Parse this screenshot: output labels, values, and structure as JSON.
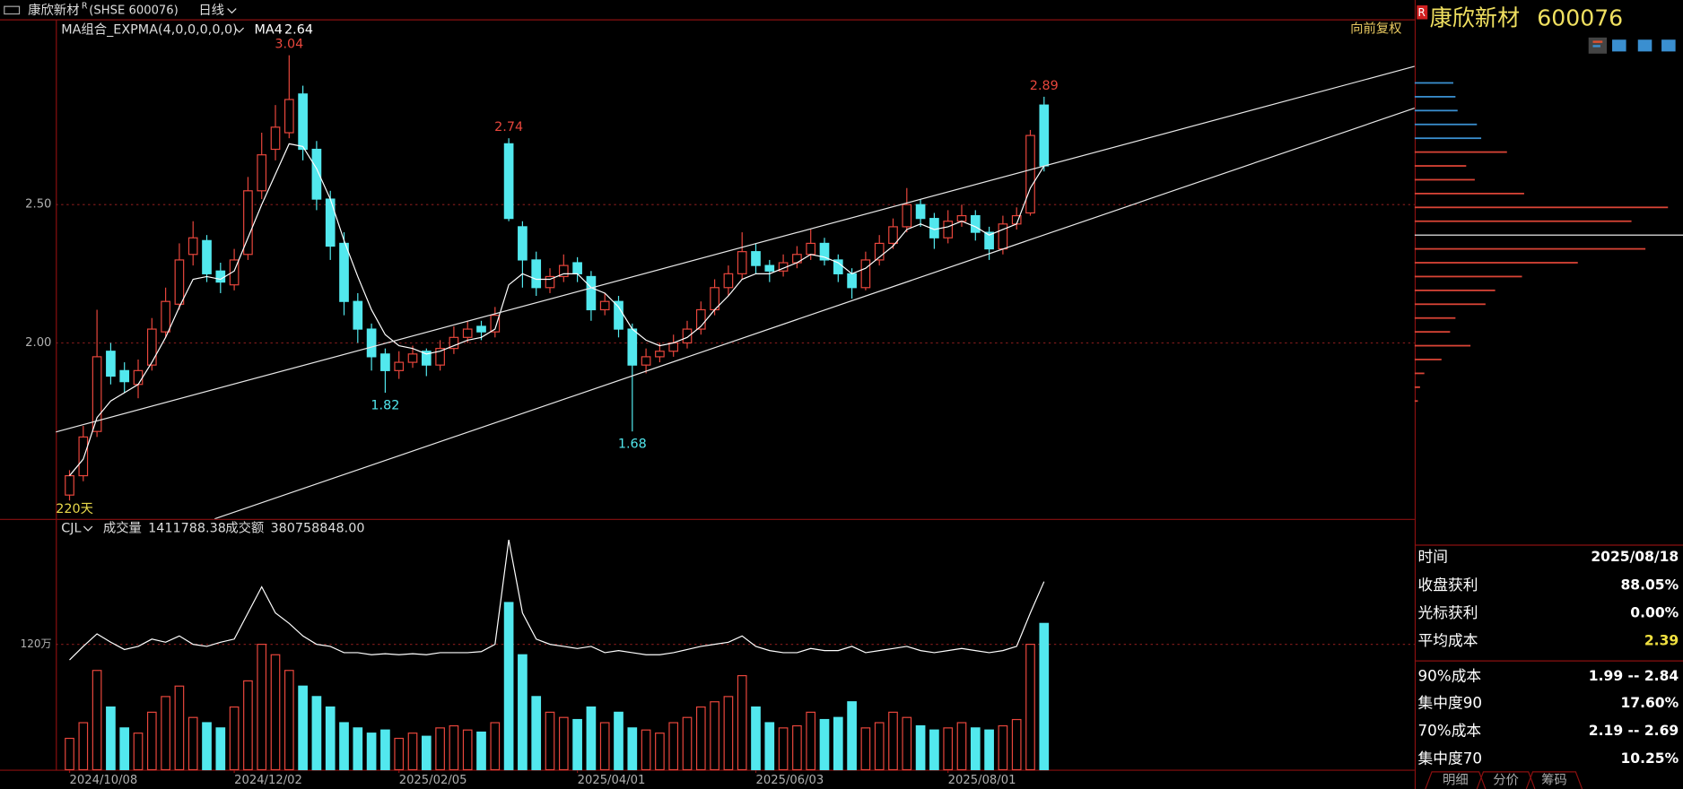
{
  "header": {
    "name": "康欣新材",
    "flag": "R",
    "code": "(SHSE 600076)",
    "period": "日线"
  },
  "chart_data": {
    "type": "candlestick",
    "indicator": "MA组合_EXPMA(4,0,0,0,0,0)",
    "adjust": "向前复权",
    "period_label": "220天",
    "xlim": [
      -1,
      98
    ],
    "xticks": [
      {
        "value": 0,
        "label": "2024/10/08"
      },
      {
        "value": 12,
        "label": "2024/12/02"
      },
      {
        "value": 24,
        "label": "2025/02/05"
      },
      {
        "value": 37,
        "label": "2025/04/01"
      },
      {
        "value": 50,
        "label": "2025/06/03"
      },
      {
        "value": 64,
        "label": "2025/08/01"
      }
    ],
    "ylim": [
      1.364,
      3.17
    ],
    "yticks": [
      {
        "value": 2,
        "label": "2.00"
      },
      {
        "value": 2.5,
        "label": "2.50"
      }
    ],
    "grid": true,
    "colors": {
      "up": "#e8463c",
      "down": "#52e8ee"
    },
    "open": [
      1.45,
      1.52,
      1.68,
      1.97,
      1.9,
      1.85,
      1.92,
      2.04,
      2.14,
      2.32,
      2.37,
      2.26,
      2.21,
      2.32,
      2.55,
      2.7,
      2.76,
      2.9,
      2.7,
      2.52,
      2.36,
      2.15,
      2.05,
      1.96,
      1.9,
      1.93,
      1.97,
      1.92,
      1.98,
      2.02,
      2.06,
      2.04,
      2.72,
      2.42,
      2.3,
      2.2,
      2.24,
      2.29,
      2.24,
      2.12,
      2.15,
      2.05,
      1.92,
      1.95,
      1.97,
      2.0,
      2.05,
      2.12,
      2.2,
      2.25,
      2.33,
      2.28,
      2.26,
      2.29,
      2.32,
      2.36,
      2.3,
      2.25,
      2.2,
      2.3,
      2.36,
      2.42,
      2.5,
      2.45,
      2.38,
      2.44,
      2.46,
      2.4,
      2.34,
      2.43,
      2.47,
      2.86
    ],
    "high": [
      1.54,
      1.7,
      2.12,
      2.0,
      1.93,
      1.94,
      2.09,
      2.2,
      2.36,
      2.44,
      2.39,
      2.29,
      2.34,
      2.6,
      2.76,
      2.86,
      3.04,
      2.93,
      2.73,
      2.55,
      2.4,
      2.18,
      2.07,
      1.98,
      1.97,
      1.99,
      1.98,
      2.01,
      2.06,
      2.08,
      2.08,
      2.13,
      2.74,
      2.44,
      2.33,
      2.27,
      2.32,
      2.31,
      2.26,
      2.18,
      2.17,
      2.07,
      1.98,
      2.0,
      2.03,
      2.08,
      2.15,
      2.23,
      2.28,
      2.4,
      2.36,
      2.3,
      2.32,
      2.35,
      2.41,
      2.38,
      2.32,
      2.27,
      2.33,
      2.39,
      2.45,
      2.56,
      2.52,
      2.47,
      2.48,
      2.5,
      2.48,
      2.42,
      2.46,
      2.49,
      2.77,
      2.89
    ],
    "low": [
      1.43,
      1.5,
      1.66,
      1.85,
      1.82,
      1.8,
      1.9,
      2.02,
      2.12,
      2.28,
      2.22,
      2.18,
      2.19,
      2.3,
      2.52,
      2.66,
      2.74,
      2.66,
      2.48,
      2.3,
      2.1,
      2.0,
      1.9,
      1.82,
      1.87,
      1.91,
      1.88,
      1.9,
      1.96,
      2.0,
      2.01,
      2.02,
      2.44,
      2.2,
      2.17,
      2.18,
      2.22,
      2.22,
      2.08,
      2.1,
      2.02,
      1.68,
      1.89,
      1.93,
      1.95,
      1.98,
      2.03,
      2.1,
      2.17,
      2.23,
      2.25,
      2.22,
      2.24,
      2.27,
      2.3,
      2.28,
      2.22,
      2.16,
      2.19,
      2.28,
      2.34,
      2.4,
      2.42,
      2.34,
      2.36,
      2.42,
      2.37,
      2.3,
      2.32,
      2.41,
      2.46,
      2.62
    ],
    "close": [
      1.52,
      1.66,
      1.95,
      1.88,
      1.86,
      1.9,
      2.05,
      2.15,
      2.3,
      2.38,
      2.25,
      2.22,
      2.3,
      2.55,
      2.68,
      2.78,
      2.88,
      2.7,
      2.52,
      2.35,
      2.15,
      2.05,
      1.95,
      1.9,
      1.93,
      1.96,
      1.92,
      1.98,
      2.02,
      2.05,
      2.04,
      2.1,
      2.45,
      2.3,
      2.2,
      2.24,
      2.28,
      2.25,
      2.12,
      2.15,
      2.05,
      1.92,
      1.95,
      1.97,
      2.0,
      2.05,
      2.12,
      2.2,
      2.25,
      2.33,
      2.28,
      2.26,
      2.29,
      2.32,
      2.36,
      2.3,
      2.25,
      2.2,
      2.3,
      2.36,
      2.42,
      2.5,
      2.45,
      2.38,
      2.44,
      2.46,
      2.4,
      2.34,
      2.43,
      2.46,
      2.75,
      2.64
    ],
    "ma": {
      "name": "MA4",
      "color": "#ffffff",
      "values": [
        1.52,
        1.58,
        1.73,
        1.79,
        1.82,
        1.85,
        1.93,
        2.02,
        2.13,
        2.23,
        2.24,
        2.23,
        2.26,
        2.38,
        2.5,
        2.61,
        2.72,
        2.71,
        2.63,
        2.52,
        2.37,
        2.24,
        2.12,
        2.03,
        1.99,
        1.98,
        1.96,
        1.97,
        1.99,
        2.01,
        2.02,
        2.05,
        2.21,
        2.25,
        2.23,
        2.23,
        2.25,
        2.25,
        2.2,
        2.18,
        2.13,
        2.05,
        2.01,
        1.99,
        2.0,
        2.02,
        2.06,
        2.12,
        2.17,
        2.23,
        2.25,
        2.25,
        2.27,
        2.29,
        2.32,
        2.31,
        2.29,
        2.25,
        2.27,
        2.31,
        2.35,
        2.41,
        2.43,
        2.41,
        2.42,
        2.44,
        2.42,
        2.39,
        2.41,
        2.43,
        2.56,
        2.64
      ]
    },
    "annotations": [
      {
        "x": 16,
        "y": 3.04,
        "side": "high"
      },
      {
        "x": 32,
        "y": 2.74,
        "side": "high"
      },
      {
        "x": 71,
        "y": 2.89,
        "side": "high"
      },
      {
        "x": 23,
        "y": 1.82,
        "side": "low"
      },
      {
        "x": 41,
        "y": 1.68,
        "side": "low"
      }
    ],
    "trendlines": [
      {
        "x": [
          -1,
          98
        ],
        "y": [
          1.678,
          3.0
        ]
      },
      {
        "x": [
          10.57,
          98
        ],
        "y": [
          1.364,
          2.849
        ]
      }
    ],
    "volume": {
      "label": "CJL",
      "volume_label": "成交量",
      "volume_value": "1411788.38",
      "amount_label": "成交额",
      "amount_value": "380758848.00",
      "ylim": [
        0,
        238
      ],
      "yticks": [
        {
          "value": 120,
          "label": "120万"
        }
      ],
      "values": [
        30,
        45,
        95,
        60,
        40,
        35,
        55,
        70,
        80,
        50,
        45,
        40,
        60,
        85,
        120,
        110,
        95,
        80,
        70,
        60,
        45,
        40,
        35,
        38,
        30,
        35,
        32,
        40,
        42,
        38,
        36,
        45,
        160,
        110,
        70,
        55,
        50,
        48,
        60,
        45,
        55,
        40,
        38,
        35,
        45,
        50,
        60,
        65,
        70,
        90,
        60,
        45,
        40,
        42,
        55,
        48,
        50,
        65,
        40,
        45,
        55,
        50,
        42,
        38,
        40,
        45,
        40,
        38,
        42,
        48,
        120,
        140
      ],
      "line": [
        105,
        118,
        130,
        122,
        115,
        118,
        125,
        122,
        128,
        120,
        118,
        122,
        125,
        150,
        175,
        150,
        140,
        128,
        120,
        118,
        112,
        112,
        110,
        111,
        110,
        111,
        110,
        112,
        112,
        112,
        113,
        120,
        220,
        150,
        125,
        120,
        118,
        116,
        118,
        112,
        114,
        112,
        110,
        110,
        112,
        115,
        118,
        120,
        122,
        128,
        118,
        114,
        112,
        112,
        116,
        114,
        114,
        118,
        112,
        114,
        116,
        118,
        114,
        112,
        114,
        116,
        114,
        112,
        114,
        118,
        150,
        180
      ]
    },
    "chip_distribution": {
      "xlim": [
        0,
        250
      ],
      "average_cost": 2.39,
      "prices": [
        2.94,
        2.89,
        2.84,
        2.79,
        2.74,
        2.69,
        2.64,
        2.59,
        2.54,
        2.49,
        2.44,
        2.34,
        2.29,
        2.24,
        2.19,
        2.14,
        2.09,
        2.04,
        1.99,
        1.94,
        1.89,
        1.84,
        1.79
      ],
      "amounts": [
        36,
        38,
        40,
        58,
        62,
        86,
        48,
        56,
        102,
        236,
        202,
        215,
        152,
        100,
        75,
        66,
        38,
        33,
        52,
        25,
        9,
        5,
        3
      ],
      "colors": [
        "#3a8fd0",
        "#3a8fd0",
        "#3a8fd0",
        "#3a8fd0",
        "#3a8fd0",
        "#d94436",
        "#d94436",
        "#d94436",
        "#d94436",
        "#d94436",
        "#d94436",
        "#d94436",
        "#d94436",
        "#d94436",
        "#d94436",
        "#d94436",
        "#d94436",
        "#d94436",
        "#d94436",
        "#d94436",
        "#d94436",
        "#d94436",
        "#d94436"
      ]
    }
  },
  "side_panel": {
    "flag": "R",
    "name": "康欣新材",
    "code": "600076",
    "rows": [
      [
        "时间",
        "2025/08/18"
      ],
      [
        "收盘获利",
        "88.05%"
      ],
      [
        "光标获利",
        "0.00%"
      ],
      [
        "平均成本",
        "2.39"
      ],
      [
        "90%成本",
        "1.99 -- 2.84"
      ],
      [
        "集中度90",
        "17.60%"
      ],
      [
        "70%成本",
        "2.19 -- 2.69"
      ],
      [
        "集中度70",
        "10.25%"
      ]
    ],
    "tabs": [
      "明细",
      "分价",
      "筹码"
    ]
  }
}
